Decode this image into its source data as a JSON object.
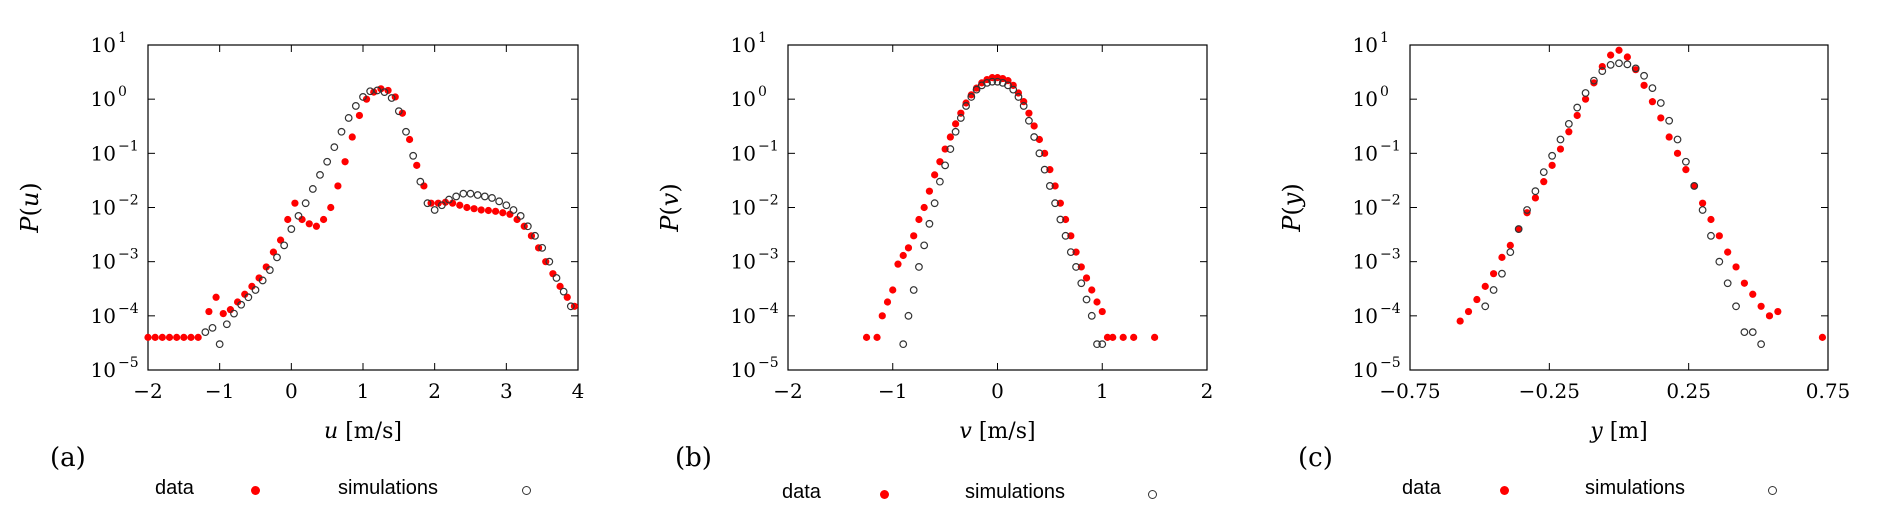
{
  "chart_data": [
    {
      "type": "scatter",
      "panel_label": "(a)",
      "ylabel_letter": "P",
      "ylabel_arg": "u",
      "xlabel_var": "u",
      "xlabel_unit": "[m/s]",
      "xlim": [
        -2,
        4
      ],
      "x_ticks": [
        -2,
        -1,
        0,
        1,
        2,
        3,
        4
      ],
      "x_tick_labels": [
        "−2",
        "−1",
        "0",
        "1",
        "2",
        "3",
        "4"
      ],
      "y_scale": "log",
      "ylim": [
        1e-05,
        10
      ],
      "y_tick_exponents": [
        1,
        0,
        -1,
        -2,
        -3,
        -4,
        -5
      ],
      "legend": [
        "data",
        "simulations"
      ],
      "series": [
        {
          "name": "data",
          "marker": "filled-dot",
          "color": "#ff0000",
          "x": [
            -2.0,
            -1.9,
            -1.8,
            -1.7,
            -1.6,
            -1.5,
            -1.4,
            -1.3,
            -1.15,
            -1.05,
            -0.95,
            -0.85,
            -0.75,
            -0.65,
            -0.55,
            -0.45,
            -0.35,
            -0.25,
            -0.15,
            -0.05,
            0.05,
            0.15,
            0.25,
            0.35,
            0.45,
            0.55,
            0.65,
            0.75,
            0.85,
            0.95,
            1.05,
            1.15,
            1.25,
            1.35,
            1.45,
            1.55,
            1.65,
            1.75,
            1.85,
            1.95,
            2.05,
            2.15,
            2.25,
            2.35,
            2.45,
            2.55,
            2.65,
            2.75,
            2.85,
            2.95,
            3.05,
            3.15,
            3.25,
            3.35,
            3.45,
            3.55,
            3.65,
            3.75,
            3.85,
            3.95
          ],
          "y": [
            4e-05,
            4e-05,
            4e-05,
            4e-05,
            4e-05,
            4e-05,
            4e-05,
            4e-05,
            0.00012,
            0.00022,
            0.00011,
            0.00013,
            0.00018,
            0.00025,
            0.00035,
            0.0005,
            0.0008,
            0.0015,
            0.0025,
            0.006,
            0.012,
            0.006,
            0.005,
            0.0045,
            0.006,
            0.01,
            0.025,
            0.07,
            0.2,
            0.5,
            1.0,
            1.35,
            1.55,
            1.45,
            1.1,
            0.55,
            0.18,
            0.06,
            0.025,
            0.012,
            0.012,
            0.0125,
            0.012,
            0.011,
            0.01,
            0.0095,
            0.009,
            0.0088,
            0.0085,
            0.008,
            0.0075,
            0.006,
            0.0045,
            0.003,
            0.0018,
            0.001,
            0.0006,
            0.00035,
            0.00022,
            0.00015
          ]
        },
        {
          "name": "simulations",
          "marker": "open-circle",
          "color": "#333333",
          "x": [
            -1.2,
            -1.1,
            -1.0,
            -0.9,
            -0.8,
            -0.7,
            -0.6,
            -0.5,
            -0.4,
            -0.3,
            -0.2,
            -0.1,
            0.0,
            0.1,
            0.2,
            0.3,
            0.4,
            0.5,
            0.6,
            0.7,
            0.8,
            0.9,
            1.0,
            1.1,
            1.2,
            1.3,
            1.4,
            1.5,
            1.6,
            1.7,
            1.8,
            1.9,
            2.0,
            2.1,
            2.2,
            2.3,
            2.4,
            2.5,
            2.6,
            2.7,
            2.8,
            2.9,
            3.0,
            3.1,
            3.2,
            3.3,
            3.4,
            3.5,
            3.6,
            3.7,
            3.8,
            3.9
          ],
          "y": [
            5e-05,
            6e-05,
            3e-05,
            7e-05,
            0.00011,
            0.00016,
            0.00022,
            0.0003,
            0.00045,
            0.0007,
            0.0012,
            0.002,
            0.004,
            0.007,
            0.012,
            0.022,
            0.04,
            0.07,
            0.13,
            0.25,
            0.45,
            0.75,
            1.1,
            1.4,
            1.45,
            1.35,
            1.05,
            0.6,
            0.25,
            0.09,
            0.03,
            0.012,
            0.009,
            0.011,
            0.014,
            0.016,
            0.018,
            0.018,
            0.017,
            0.016,
            0.015,
            0.013,
            0.011,
            0.009,
            0.007,
            0.0045,
            0.003,
            0.0018,
            0.001,
            0.0005,
            0.00028,
            0.00015
          ]
        }
      ]
    },
    {
      "type": "scatter",
      "panel_label": "(b)",
      "ylabel_letter": "P",
      "ylabel_arg": "v",
      "xlabel_var": "v",
      "xlabel_unit": "[m/s]",
      "xlim": [
        -2,
        2
      ],
      "x_ticks": [
        -2,
        -1,
        0,
        1,
        2
      ],
      "x_tick_labels": [
        "−2",
        "−1",
        "0",
        "1",
        "2"
      ],
      "y_scale": "log",
      "ylim": [
        1e-05,
        10
      ],
      "y_tick_exponents": [
        1,
        0,
        -1,
        -2,
        -3,
        -4,
        -5
      ],
      "legend": [
        "data",
        "simulations"
      ],
      "series": [
        {
          "name": "data",
          "marker": "filled-dot",
          "color": "#ff0000",
          "x": [
            -1.25,
            -1.15,
            -1.1,
            -1.05,
            -1.0,
            -0.95,
            -0.9,
            -0.85,
            -0.8,
            -0.75,
            -0.7,
            -0.65,
            -0.6,
            -0.55,
            -0.5,
            -0.45,
            -0.4,
            -0.35,
            -0.3,
            -0.25,
            -0.2,
            -0.15,
            -0.1,
            -0.05,
            0.0,
            0.05,
            0.1,
            0.15,
            0.2,
            0.25,
            0.3,
            0.35,
            0.4,
            0.45,
            0.5,
            0.55,
            0.6,
            0.65,
            0.7,
            0.75,
            0.8,
            0.85,
            0.9,
            0.95,
            1.0,
            1.05,
            1.1,
            1.2,
            1.3,
            1.5
          ],
          "y": [
            4e-05,
            4e-05,
            0.0001,
            0.00018,
            0.0003,
            0.0009,
            0.0013,
            0.0018,
            0.003,
            0.006,
            0.01,
            0.02,
            0.04,
            0.07,
            0.12,
            0.2,
            0.35,
            0.55,
            0.85,
            1.2,
            1.6,
            2.0,
            2.3,
            2.5,
            2.5,
            2.4,
            2.2,
            1.8,
            1.3,
            0.9,
            0.55,
            0.32,
            0.18,
            0.1,
            0.05,
            0.025,
            0.012,
            0.006,
            0.003,
            0.0015,
            0.0008,
            0.0005,
            0.0003,
            0.00018,
            0.00012,
            4e-05,
            4e-05,
            4e-05,
            4e-05,
            4e-05
          ]
        },
        {
          "name": "simulations",
          "marker": "open-circle",
          "color": "#333333",
          "x": [
            -0.9,
            -0.85,
            -0.8,
            -0.75,
            -0.7,
            -0.65,
            -0.6,
            -0.55,
            -0.5,
            -0.45,
            -0.4,
            -0.35,
            -0.3,
            -0.25,
            -0.2,
            -0.15,
            -0.1,
            -0.05,
            0.0,
            0.05,
            0.1,
            0.15,
            0.2,
            0.25,
            0.3,
            0.35,
            0.4,
            0.45,
            0.5,
            0.55,
            0.6,
            0.65,
            0.7,
            0.75,
            0.8,
            0.85,
            0.9,
            0.95,
            1.0
          ],
          "y": [
            3e-05,
            0.0001,
            0.0003,
            0.0008,
            0.002,
            0.005,
            0.012,
            0.03,
            0.06,
            0.12,
            0.25,
            0.45,
            0.75,
            1.1,
            1.5,
            1.8,
            2.0,
            2.1,
            2.1,
            2.0,
            1.8,
            1.5,
            1.1,
            0.75,
            0.4,
            0.2,
            0.1,
            0.05,
            0.025,
            0.012,
            0.006,
            0.003,
            0.0015,
            0.0008,
            0.0004,
            0.0002,
            0.0001,
            3e-05,
            3e-05
          ]
        }
      ]
    },
    {
      "type": "scatter",
      "panel_label": "(c)",
      "ylabel_letter": "P",
      "ylabel_arg": "y",
      "xlabel_var": "y",
      "xlabel_unit": "[m]",
      "xlim": [
        -0.75,
        0.75
      ],
      "x_ticks": [
        -0.75,
        -0.25,
        0.25,
        0.75
      ],
      "x_tick_labels": [
        "−0.75",
        "−0.25",
        "0.25",
        "0.75"
      ],
      "y_scale": "log",
      "ylim": [
        1e-05,
        10
      ],
      "y_tick_exponents": [
        1,
        0,
        -1,
        -2,
        -3,
        -4,
        -5
      ],
      "legend": [
        "data",
        "simulations"
      ],
      "series": [
        {
          "name": "data",
          "marker": "filled-dot",
          "color": "#ff0000",
          "x": [
            -0.57,
            -0.54,
            -0.51,
            -0.48,
            -0.45,
            -0.42,
            -0.39,
            -0.36,
            -0.33,
            -0.3,
            -0.27,
            -0.24,
            -0.21,
            -0.18,
            -0.15,
            -0.12,
            -0.09,
            -0.06,
            -0.03,
            0.0,
            0.03,
            0.06,
            0.09,
            0.12,
            0.15,
            0.18,
            0.21,
            0.24,
            0.27,
            0.3,
            0.33,
            0.36,
            0.39,
            0.42,
            0.45,
            0.48,
            0.51,
            0.54,
            0.57,
            0.73
          ],
          "y": [
            8e-05,
            0.00012,
            0.0002,
            0.00035,
            0.0006,
            0.0012,
            0.002,
            0.004,
            0.008,
            0.015,
            0.03,
            0.06,
            0.12,
            0.25,
            0.5,
            1.0,
            2.0,
            4.0,
            6.5,
            8.0,
            6.0,
            3.5,
            1.8,
            0.9,
            0.45,
            0.2,
            0.1,
            0.05,
            0.025,
            0.012,
            0.006,
            0.003,
            0.0015,
            0.0008,
            0.0004,
            0.00025,
            0.00015,
            0.0001,
            0.00012,
            4e-05
          ]
        },
        {
          "name": "simulations",
          "marker": "open-circle",
          "color": "#333333",
          "x": [
            -0.48,
            -0.45,
            -0.42,
            -0.39,
            -0.36,
            -0.33,
            -0.3,
            -0.27,
            -0.24,
            -0.21,
            -0.18,
            -0.15,
            -0.12,
            -0.09,
            -0.06,
            -0.03,
            0.0,
            0.03,
            0.06,
            0.09,
            0.12,
            0.15,
            0.18,
            0.21,
            0.24,
            0.27,
            0.3,
            0.33,
            0.36,
            0.39,
            0.42,
            0.45,
            0.48,
            0.51
          ],
          "y": [
            0.00015,
            0.0003,
            0.0006,
            0.0015,
            0.004,
            0.009,
            0.02,
            0.045,
            0.09,
            0.18,
            0.35,
            0.7,
            1.3,
            2.2,
            3.3,
            4.3,
            4.6,
            4.4,
            3.7,
            2.7,
            1.6,
            0.85,
            0.4,
            0.18,
            0.07,
            0.025,
            0.009,
            0.003,
            0.001,
            0.0004,
            0.00015,
            5e-05,
            5e-05,
            3e-05
          ]
        }
      ]
    }
  ]
}
